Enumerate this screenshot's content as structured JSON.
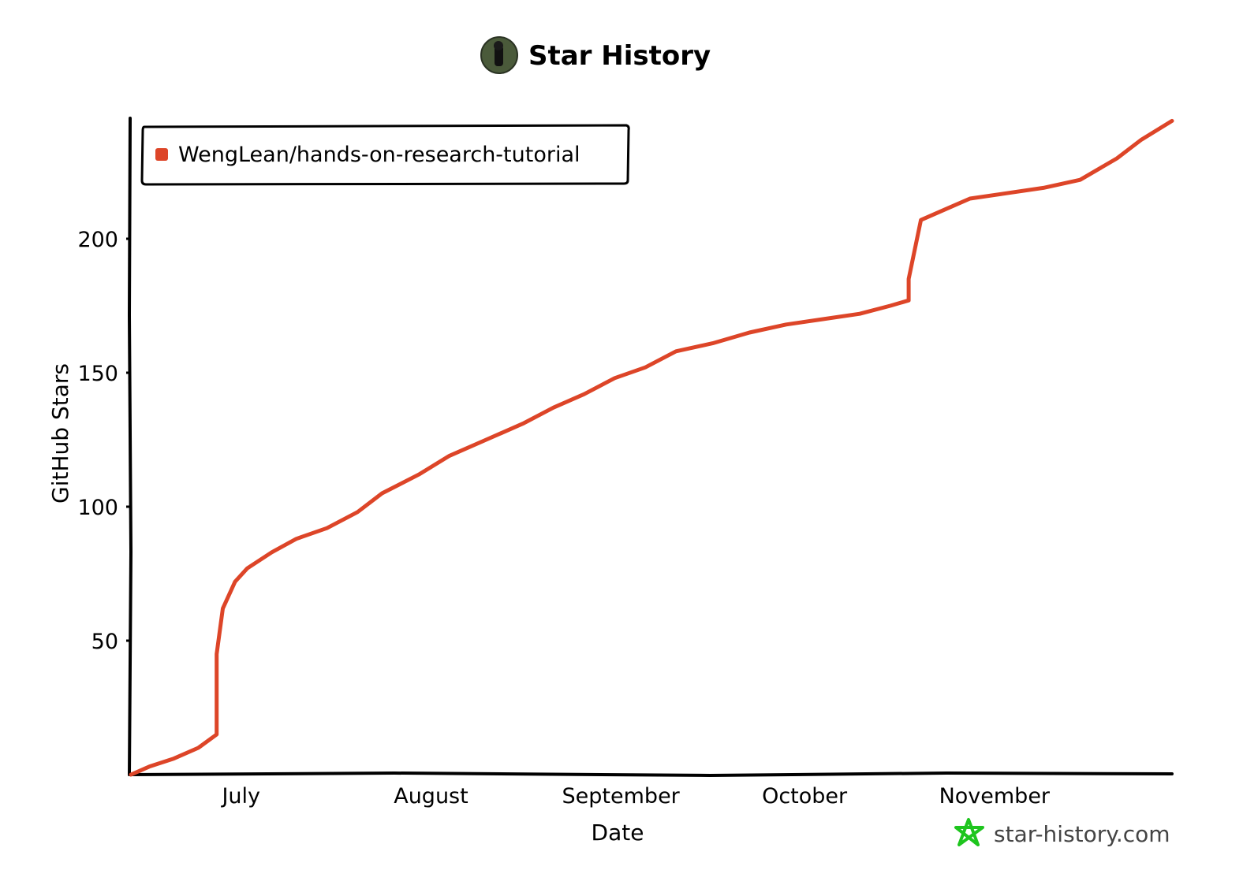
{
  "header": {
    "title": "Star History",
    "avatar_icon": "user-avatar-icon"
  },
  "watermark": {
    "text": "star-history.com",
    "icon": "star-outline-icon",
    "icon_color": "#1ec51e"
  },
  "colors": {
    "series": "#dd4528",
    "axis": "#000000"
  },
  "chart_data": {
    "type": "line",
    "title": "Star History",
    "xlabel": "Date",
    "ylabel": "GitHub Stars",
    "x_type": "date",
    "xlim": [
      "2023-06-13",
      "2023-11-30"
    ],
    "ylim": [
      0,
      245
    ],
    "y_ticks": [
      50,
      100,
      150,
      200
    ],
    "x_ticks": [
      {
        "label": "July",
        "date": "2023-07-01"
      },
      {
        "label": "August",
        "date": "2023-08-01"
      },
      {
        "label": "September",
        "date": "2023-09-01"
      },
      {
        "label": "October",
        "date": "2023-10-01"
      },
      {
        "label": "November",
        "date": "2023-11-01"
      }
    ],
    "grid": false,
    "legend_position": "top-left",
    "series": [
      {
        "name": "WengLean/hands-on-research-tutorial",
        "color": "#dd4528",
        "points": [
          [
            "2023-06-13",
            0
          ],
          [
            "2023-06-16",
            3
          ],
          [
            "2023-06-20",
            6
          ],
          [
            "2023-06-24",
            10
          ],
          [
            "2023-06-27",
            15
          ],
          [
            "2023-06-27",
            45
          ],
          [
            "2023-06-28",
            62
          ],
          [
            "2023-06-30",
            72
          ],
          [
            "2023-07-02",
            77
          ],
          [
            "2023-07-06",
            83
          ],
          [
            "2023-07-10",
            88
          ],
          [
            "2023-07-15",
            92
          ],
          [
            "2023-07-20",
            98
          ],
          [
            "2023-07-24",
            105
          ],
          [
            "2023-07-30",
            112
          ],
          [
            "2023-08-04",
            119
          ],
          [
            "2023-08-10",
            125
          ],
          [
            "2023-08-16",
            131
          ],
          [
            "2023-08-21",
            137
          ],
          [
            "2023-08-26",
            142
          ],
          [
            "2023-08-31",
            148
          ],
          [
            "2023-09-05",
            152
          ],
          [
            "2023-09-10",
            158
          ],
          [
            "2023-09-16",
            161
          ],
          [
            "2023-09-22",
            165
          ],
          [
            "2023-09-28",
            168
          ],
          [
            "2023-10-04",
            170
          ],
          [
            "2023-10-10",
            172
          ],
          [
            "2023-10-15",
            175
          ],
          [
            "2023-10-18",
            177
          ],
          [
            "2023-10-18",
            185
          ],
          [
            "2023-10-20",
            207
          ],
          [
            "2023-10-24",
            211
          ],
          [
            "2023-10-28",
            215
          ],
          [
            "2023-11-03",
            217
          ],
          [
            "2023-11-09",
            219
          ],
          [
            "2023-11-15",
            222
          ],
          [
            "2023-11-21",
            230
          ],
          [
            "2023-11-25",
            237
          ],
          [
            "2023-11-30",
            244
          ]
        ]
      }
    ]
  }
}
